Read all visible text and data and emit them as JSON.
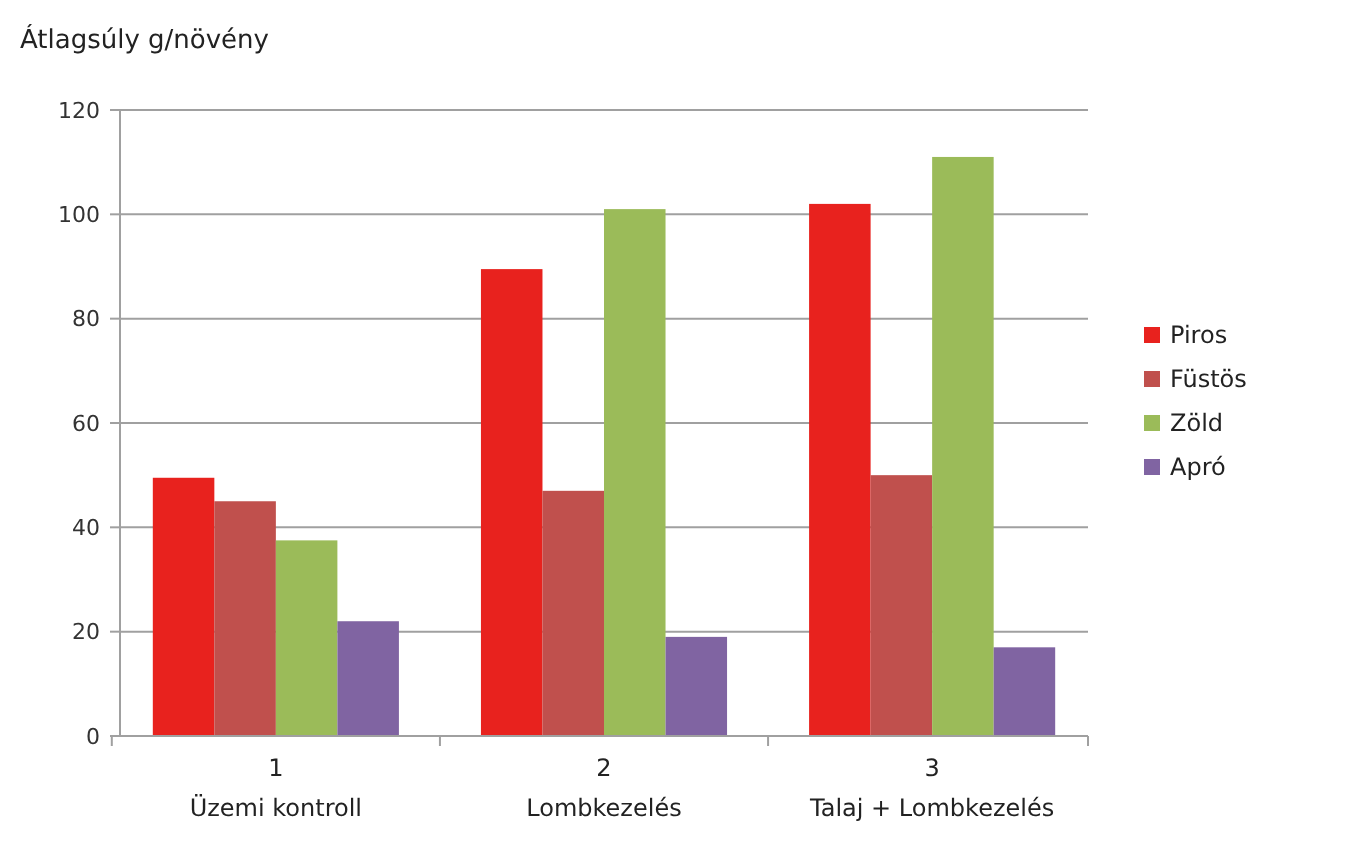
{
  "chart_data": {
    "type": "bar",
    "title": "Átlagsúly g/növény",
    "categories": [
      "1\nÜzemi kontroll",
      "2\nLombkezelés",
      "3\nTalaj + Lombkezelés"
    ],
    "series": [
      {
        "name": "Piros",
        "color": "#e8221e",
        "values": [
          49.5,
          89.5,
          102
        ]
      },
      {
        "name": "Füstös",
        "color": "#c0504d",
        "values": [
          45,
          47,
          50
        ]
      },
      {
        "name": "Zöld",
        "color": "#9bbb59",
        "values": [
          37.5,
          101,
          111
        ]
      },
      {
        "name": "Apró",
        "color": "#8064a2",
        "values": [
          22,
          19,
          17
        ]
      }
    ],
    "ylim": [
      0,
      120
    ],
    "yticks": [
      0,
      20,
      40,
      60,
      80,
      100,
      120
    ],
    "grid": "y",
    "legend": "right"
  }
}
